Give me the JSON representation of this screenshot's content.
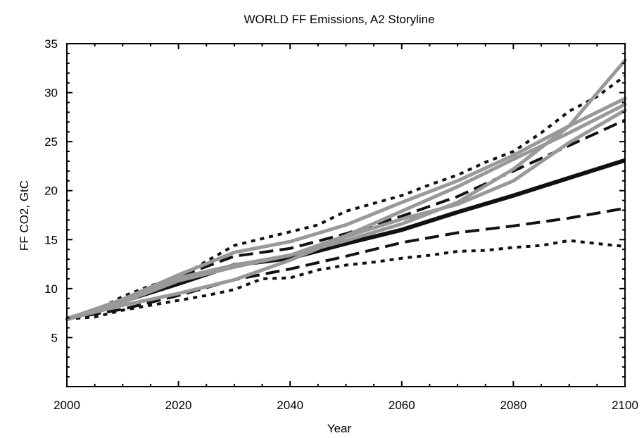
{
  "chart_data": {
    "type": "line",
    "title": "WORLD FF Emissions, A2 Storyline",
    "xlabel": "Year",
    "ylabel": "FF CO2, GtC",
    "xlim": [
      2000,
      2100
    ],
    "ylim": [
      0,
      35
    ],
    "xticks": [
      2000,
      2020,
      2040,
      2060,
      2080,
      2100
    ],
    "yticks": [
      5,
      10,
      15,
      20,
      25,
      30,
      35
    ],
    "grid": false,
    "legend": "none",
    "series": [
      {
        "style": "dotted",
        "color": "#111111",
        "x": [
          2000,
          2005,
          2010,
          2015,
          2020,
          2025,
          2030,
          2035,
          2040,
          2045,
          2050,
          2055,
          2060,
          2065,
          2070,
          2075,
          2080,
          2085,
          2090,
          2095,
          2100
        ],
        "values": [
          6.9,
          7.1,
          7.8,
          8.3,
          8.8,
          9.3,
          9.9,
          11.0,
          11.1,
          11.9,
          12.4,
          12.7,
          13.1,
          13.4,
          13.8,
          13.9,
          14.2,
          14.4,
          14.9,
          14.6,
          14.3
        ]
      },
      {
        "style": "dashed",
        "color": "#111111",
        "x": [
          2000,
          2010,
          2020,
          2030,
          2040,
          2050,
          2060,
          2070,
          2080,
          2090,
          2100
        ],
        "values": [
          6.9,
          7.9,
          9.3,
          10.9,
          12.0,
          13.3,
          14.7,
          15.7,
          16.4,
          17.2,
          18.2
        ]
      },
      {
        "style": "solid",
        "color": "#111111",
        "width": 6,
        "x": [
          2000,
          2010,
          2020,
          2030,
          2040,
          2050,
          2060,
          2070,
          2080,
          2090,
          2100
        ],
        "values": [
          6.9,
          8.7,
          10.5,
          12.4,
          13.1,
          14.6,
          16.0,
          17.8,
          19.5,
          21.3,
          23.1
        ]
      },
      {
        "style": "dashed",
        "color": "#111111",
        "x": [
          2000,
          2010,
          2020,
          2030,
          2040,
          2050,
          2060,
          2070,
          2080,
          2090,
          2100
        ],
        "values": [
          6.9,
          8.9,
          11.2,
          13.3,
          14.1,
          15.6,
          17.4,
          19.4,
          22.0,
          24.6,
          27.2
        ]
      },
      {
        "style": "dotted",
        "color": "#111111",
        "x": [
          2000,
          2005,
          2010,
          2015,
          2020,
          2025,
          2030,
          2035,
          2040,
          2045,
          2050,
          2055,
          2060,
          2065,
          2070,
          2075,
          2080,
          2085,
          2090,
          2095,
          2100
        ],
        "values": [
          6.9,
          7.7,
          9.2,
          10.3,
          11.1,
          12.8,
          14.4,
          15.1,
          15.8,
          16.5,
          17.9,
          18.7,
          19.5,
          20.6,
          21.6,
          22.9,
          24.0,
          25.9,
          28.1,
          29.6,
          31.7
        ]
      },
      {
        "style": "solid",
        "color": "#999999",
        "x": [
          2000,
          2010,
          2020,
          2030,
          2040,
          2050,
          2060,
          2070,
          2080,
          2090,
          2100
        ],
        "values": [
          6.9,
          8.3,
          9.5,
          10.9,
          12.9,
          15.3,
          17.1,
          18.6,
          21.0,
          24.9,
          28.2
        ]
      },
      {
        "style": "solid",
        "color": "#999999",
        "x": [
          2000,
          2010,
          2020,
          2030,
          2040,
          2050,
          2060,
          2070,
          2080,
          2090,
          2100
        ],
        "values": [
          6.9,
          8.6,
          10.8,
          12.2,
          13.4,
          14.9,
          16.6,
          18.8,
          22.2,
          26.6,
          33.3
        ]
      },
      {
        "style": "solid",
        "color": "#999999",
        "x": [
          2000,
          2010,
          2020,
          2030,
          2040,
          2050,
          2060,
          2070,
          2080,
          2090,
          2100
        ],
        "values": [
          6.9,
          8.8,
          11.1,
          12.4,
          13.4,
          15.4,
          17.9,
          20.4,
          23.2,
          25.9,
          28.8
        ]
      },
      {
        "style": "solid",
        "color": "#999999",
        "x": [
          2000,
          2010,
          2020,
          2030,
          2040,
          2050,
          2060,
          2070,
          2080,
          2090,
          2100
        ],
        "values": [
          6.9,
          8.9,
          11.4,
          13.7,
          14.8,
          16.5,
          18.8,
          21.0,
          23.6,
          26.6,
          29.4
        ]
      }
    ]
  }
}
